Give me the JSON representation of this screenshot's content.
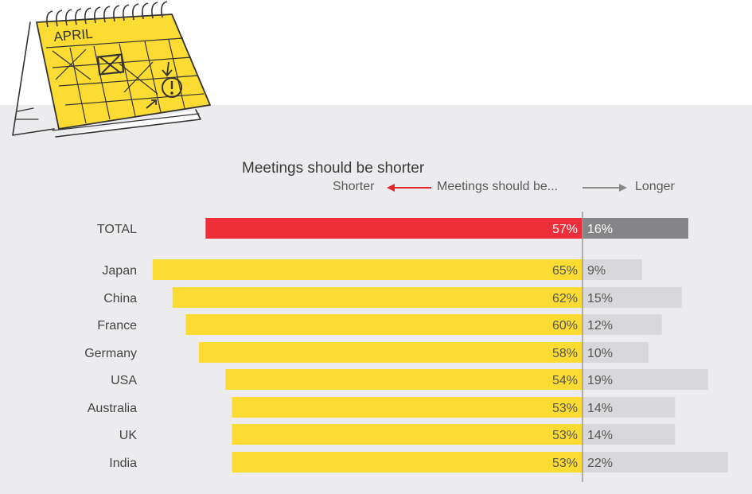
{
  "chart_data": {
    "type": "bar",
    "title": "Meetings should be shorter",
    "legend": {
      "left_label": "Shorter",
      "middle_label": "Meetings should be...",
      "right_label": "Longer"
    },
    "categories": [
      "TOTAL",
      "Japan",
      "China",
      "France",
      "Germany",
      "USA",
      "Australia",
      "UK",
      "India"
    ],
    "series": [
      {
        "key": "shorter",
        "values": [
          57,
          65,
          62,
          60,
          58,
          54,
          53,
          53,
          53
        ]
      },
      {
        "key": "longer",
        "values": [
          16,
          9,
          15,
          12,
          10,
          19,
          14,
          14,
          22
        ]
      }
    ],
    "value_suffix": "%",
    "colors": {
      "total_shorter": "#ee2f3a",
      "total_longer": "#858587",
      "shorter": "#fcdc33",
      "longer": "#d8d8da",
      "axis": "#9a9a9a",
      "shorter_arrow": "#e2262e",
      "longer_arrow": "#8a8a8a"
    }
  },
  "illustration": {
    "calendar_month": "APRIL",
    "icon": "calendar-icon"
  }
}
